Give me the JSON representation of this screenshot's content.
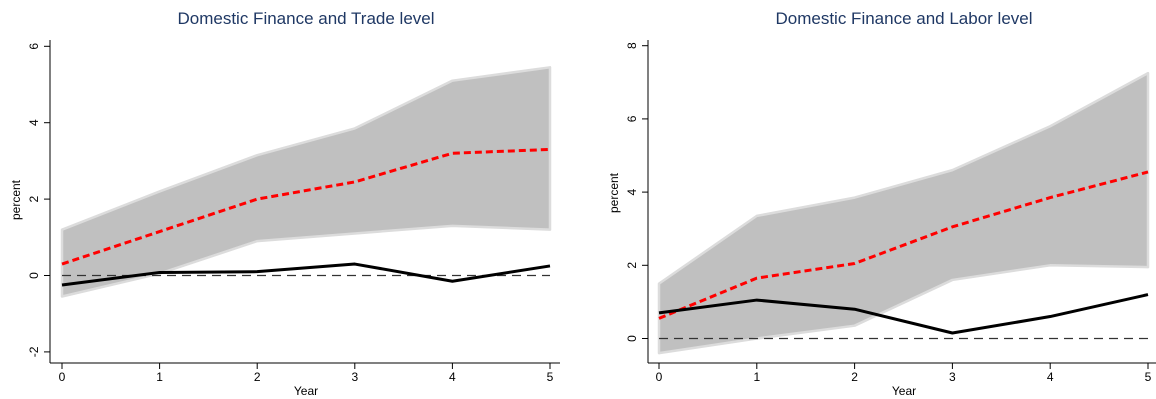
{
  "chart_data": [
    {
      "type": "line",
      "title": "Domestic Finance and Trade level",
      "xlabel": "Year",
      "ylabel": "percent",
      "x": [
        0,
        1,
        2,
        3,
        4,
        5
      ],
      "xticks": [
        "0",
        "1",
        "2",
        "3",
        "4",
        "5"
      ],
      "yticks": [
        "-2",
        "0",
        "2",
        "4",
        "6"
      ],
      "ylim": [
        -2,
        6
      ],
      "xlim": [
        0,
        5
      ],
      "band": {
        "lower": [
          -0.55,
          0.05,
          0.9,
          1.1,
          1.3,
          1.2
        ],
        "upper": [
          1.2,
          2.2,
          3.15,
          3.85,
          5.1,
          5.45
        ]
      },
      "series": [
        {
          "values": [
            0.3,
            1.15,
            2.0,
            2.45,
            3.2,
            3.3
          ],
          "color": "#ff0000",
          "style": "dashed"
        },
        {
          "values": [
            -0.25,
            0.08,
            0.1,
            0.3,
            -0.15,
            0.25
          ],
          "color": "#000000",
          "style": "solid"
        }
      ],
      "zero_line": 0,
      "colors": {
        "band": "#c0c0c0",
        "band_edge": "#dcdcdc"
      }
    },
    {
      "type": "line",
      "title": "Domestic Finance and Labor level",
      "xlabel": "Year",
      "ylabel": "percent",
      "x": [
        0,
        1,
        2,
        3,
        4,
        5
      ],
      "xticks": [
        "0",
        "1",
        "2",
        "3",
        "4",
        "5"
      ],
      "yticks": [
        "0",
        "2",
        "4",
        "6",
        "8"
      ],
      "ylim": [
        -0.4,
        8.2
      ],
      "xlim": [
        0,
        5
      ],
      "band": {
        "lower": [
          -0.4,
          0.0,
          0.35,
          1.6,
          2.0,
          1.95
        ],
        "upper": [
          1.5,
          3.35,
          3.85,
          4.6,
          5.8,
          7.25
        ]
      },
      "series": [
        {
          "values": [
            0.55,
            1.65,
            2.05,
            3.05,
            3.85,
            4.55
          ],
          "color": "#ff0000",
          "style": "dashed"
        },
        {
          "values": [
            0.7,
            1.05,
            0.8,
            0.15,
            0.6,
            1.2
          ],
          "color": "#000000",
          "style": "solid"
        }
      ],
      "zero_line": 0,
      "colors": {
        "band": "#c0c0c0",
        "band_edge": "#dcdcdc"
      }
    }
  ]
}
